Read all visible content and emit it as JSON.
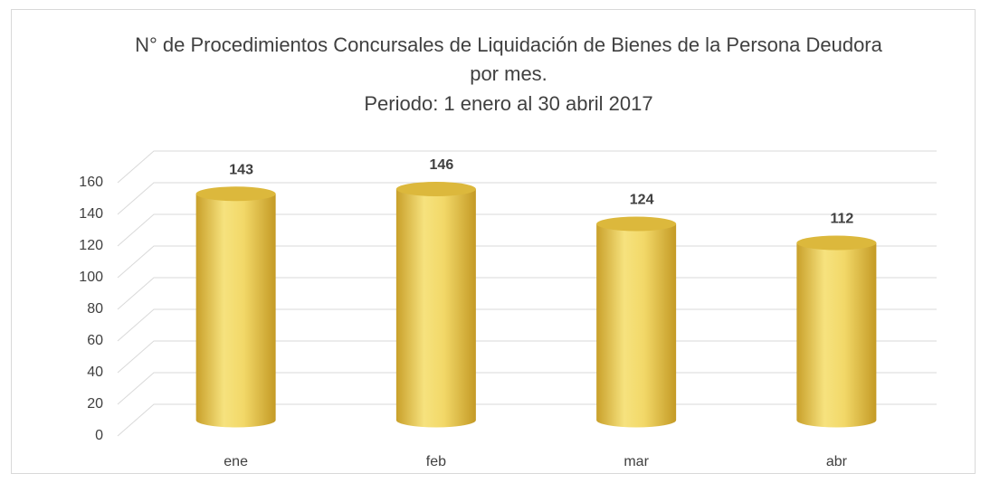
{
  "chart_data": {
    "type": "bar",
    "title": "N° de Procedimientos Concursales de Liquidación de Bienes de la Persona Deudora por mes.",
    "subtitle": "Periodo: 1 enero al 30 abril 2017",
    "categories": [
      "ene",
      "feb",
      "mar",
      "abr"
    ],
    "values": [
      143,
      146,
      124,
      112
    ],
    "color": "#e8c64a",
    "ylim": [
      0,
      160
    ],
    "yticks": [
      0,
      20,
      40,
      60,
      80,
      100,
      120,
      140,
      160
    ],
    "grid": true
  }
}
